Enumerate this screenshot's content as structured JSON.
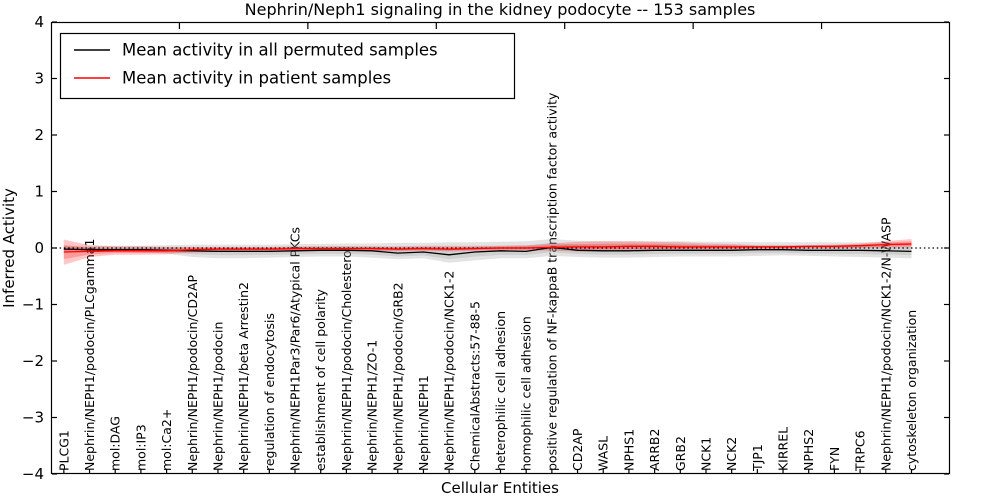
{
  "chart_data": {
    "type": "line",
    "title": "Nephrin/Neph1 signaling in the kidney podocyte -- 153 samples",
    "xlabel": "Cellular Entities",
    "ylabel": "Inferred Activity",
    "sample_count": "153",
    "ylim": [
      -4,
      4
    ],
    "xlim": [
      0,
      35
    ],
    "grid": false,
    "legend_position": "upper left",
    "ytick_labels": [
      "4",
      "3",
      "2",
      "1",
      "0",
      "−1",
      "−2",
      "−3",
      "−4"
    ],
    "ytick_values": [
      4,
      3,
      2,
      1,
      0,
      -1,
      -2,
      -3,
      -4
    ],
    "xtick_top_values": [
      5,
      10,
      15,
      20,
      25,
      30
    ],
    "zero_line": {
      "y": 0,
      "style": "dotted",
      "color": "#000000"
    },
    "categories": [
      "PLCG1",
      "Nephrin/NEPH1/podocin/PLCgamma1",
      "mol:DAG",
      "mol:IP3",
      "mol:Ca2+",
      "Nephrin/NEPH1/podocin/CD2AP",
      "Nephrin/NEPH1/podocin",
      "Nephrin/NEPH1/beta Arrestin2",
      "regulation of endocytosis",
      "Nephrin/NEPH1Par3/Par6/Atypical PKCs",
      "establishment of cell polarity",
      "Nephrin/NEPH1/podocin/Cholesterol",
      "Nephrin/NEPH1/ZO-1",
      "Nephrin/NEPH1/podocin/GRB2",
      "Nephrin/NEPH1",
      "Nephrin/NEPH1/podocin/NCK1-2",
      "ChemicalAbstracts:57-88-5",
      "heterophilic cell adhesion",
      "homophilic cell adhesion",
      "positive regulation of NF-kappaB transcription factor activity",
      "CD2AP",
      "WASL",
      "NPHS1",
      "ARRB2",
      "GRB2",
      "NCK1",
      "NCK2",
      "TJP1",
      "KIRREL",
      "NPHS2",
      "FYN",
      "TRPC6",
      "Nephrin/NEPH1/podocin/NCK1-2/N-WASP",
      "cytoskeleton organization"
    ],
    "legend": [
      {
        "label": "Mean activity in all permuted samples",
        "color": "#000000"
      },
      {
        "label": "Mean activity in patient samples",
        "color": "#ff0000"
      }
    ],
    "series": [
      {
        "name": "Mean activity in all permuted samples",
        "color": "#000000",
        "values": [
          -0.02,
          -0.03,
          -0.03,
          -0.03,
          -0.04,
          -0.05,
          -0.06,
          -0.06,
          -0.06,
          -0.05,
          -0.04,
          -0.04,
          -0.05,
          -0.09,
          -0.07,
          -0.12,
          -0.07,
          -0.05,
          -0.06,
          0.01,
          -0.04,
          -0.05,
          -0.05,
          -0.04,
          -0.04,
          -0.04,
          -0.04,
          -0.03,
          -0.03,
          -0.04,
          -0.04,
          -0.04,
          -0.05,
          -0.06
        ]
      },
      {
        "name": "Mean activity in patient samples",
        "color": "#ff0000",
        "values": [
          -0.07,
          -0.06,
          -0.05,
          -0.05,
          -0.05,
          -0.03,
          -0.02,
          -0.02,
          -0.02,
          -0.01,
          -0.01,
          -0.01,
          -0.01,
          -0.02,
          -0.01,
          -0.02,
          -0.01,
          0.0,
          0.0,
          0.01,
          0.02,
          0.02,
          0.03,
          0.03,
          0.02,
          0.02,
          0.02,
          0.02,
          0.02,
          0.03,
          0.03,
          0.04,
          0.06,
          0.07
        ]
      }
    ],
    "bands": [
      {
        "name": "permuted-samples-spread",
        "color": "#999999",
        "opacity": 0.28,
        "upper": [
          0.04,
          0.04,
          0.04,
          0.04,
          0.05,
          0.06,
          0.06,
          0.06,
          0.06,
          0.07,
          0.07,
          0.08,
          0.08,
          0.09,
          0.09,
          0.1,
          0.1,
          0.11,
          0.12,
          0.16,
          0.13,
          0.12,
          0.12,
          0.12,
          0.12,
          0.11,
          0.11,
          0.1,
          0.1,
          0.1,
          0.1,
          0.1,
          0.1,
          0.09
        ],
        "lower": [
          -0.06,
          -0.06,
          -0.07,
          -0.08,
          -0.1,
          -0.16,
          -0.18,
          -0.18,
          -0.17,
          -0.16,
          -0.15,
          -0.15,
          -0.17,
          -0.2,
          -0.18,
          -0.26,
          -0.22,
          -0.18,
          -0.18,
          -0.14,
          -0.16,
          -0.17,
          -0.17,
          -0.16,
          -0.15,
          -0.15,
          -0.15,
          -0.14,
          -0.13,
          -0.14,
          -0.15,
          -0.16,
          -0.17,
          -0.18
        ]
      },
      {
        "name": "patient-samples-spread",
        "color": "#ff0000",
        "opacity": 0.22,
        "upper": [
          0.15,
          0.05,
          0.03,
          0.03,
          0.02,
          0.02,
          0.02,
          0.02,
          0.02,
          0.03,
          0.03,
          0.03,
          0.03,
          0.03,
          0.04,
          0.04,
          0.04,
          0.04,
          0.05,
          0.08,
          0.11,
          0.12,
          0.12,
          0.11,
          0.1,
          0.08,
          0.07,
          0.05,
          0.05,
          0.05,
          0.06,
          0.08,
          0.12,
          0.16
        ],
        "lower": [
          -0.3,
          -0.16,
          -0.12,
          -0.12,
          -0.11,
          -0.08,
          -0.07,
          -0.06,
          -0.06,
          -0.05,
          -0.05,
          -0.05,
          -0.05,
          -0.06,
          -0.05,
          -0.06,
          -0.05,
          -0.04,
          -0.04,
          -0.05,
          -0.06,
          -0.06,
          -0.05,
          -0.04,
          -0.04,
          -0.03,
          -0.03,
          -0.02,
          -0.02,
          -0.01,
          -0.01,
          0.0,
          0.01,
          0.01
        ]
      }
    ]
  }
}
